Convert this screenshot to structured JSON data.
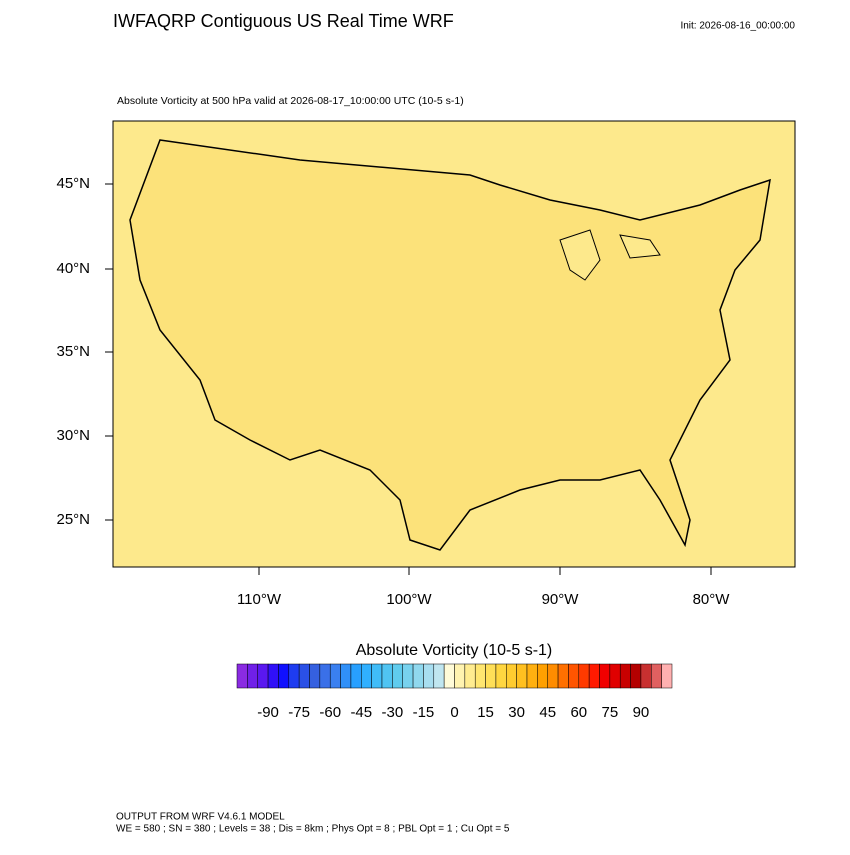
{
  "header": {
    "title": "IWFAQRP Contiguous US Real Time WRF",
    "init": "Init: 2026-08-16_00:00:00"
  },
  "subtitle": "Absolute Vorticity at 500 hPa valid at 2026-08-17_10:00:00 UTC   (10-5 s-1)",
  "map": {
    "lat_labels": [
      "45°N",
      "40°N",
      "35°N",
      "30°N",
      "25°N"
    ],
    "lon_labels": [
      "110°W",
      "100°W",
      "90°W",
      "80°W"
    ]
  },
  "colorbar": {
    "title": "Absolute Vorticity  (10-5 s-1)",
    "labels": [
      -90,
      -75,
      -60,
      -45,
      -30,
      -15,
      0,
      15,
      30,
      45,
      60,
      75,
      90
    ],
    "colors": [
      "#8a2be2",
      "#7020e8",
      "#5a18f0",
      "#3010f8",
      "#1010ff",
      "#1e3cf0",
      "#2a50e6",
      "#3560e0",
      "#3a70e8",
      "#3a80f0",
      "#3090f8",
      "#28a0ff",
      "#30b0ff",
      "#40bcf8",
      "#50c4f2",
      "#60ccee",
      "#78d2ee",
      "#90d8ee",
      "#a8def0",
      "#c0e6f0",
      "#fffbd8",
      "#fff3b0",
      "#ffec90",
      "#ffe670",
      "#ffdf58",
      "#ffd640",
      "#ffcc30",
      "#ffc020",
      "#ffb010",
      "#ffa000",
      "#ff8c00",
      "#ff7000",
      "#ff5500",
      "#ff3a00",
      "#ff1a00",
      "#f00000",
      "#e00000",
      "#c80000",
      "#b40000",
      "#c83030",
      "#e06060",
      "#ffb0b0"
    ]
  },
  "footer": {
    "line1": "OUTPUT FROM WRF V4.6.1 MODEL",
    "line2": "WE = 580 ; SN = 380 ; Levels = 38 ; Dis = 8km ; Phys Opt = 8 ; PBL Opt = 1 ; Cu Opt = 5"
  }
}
